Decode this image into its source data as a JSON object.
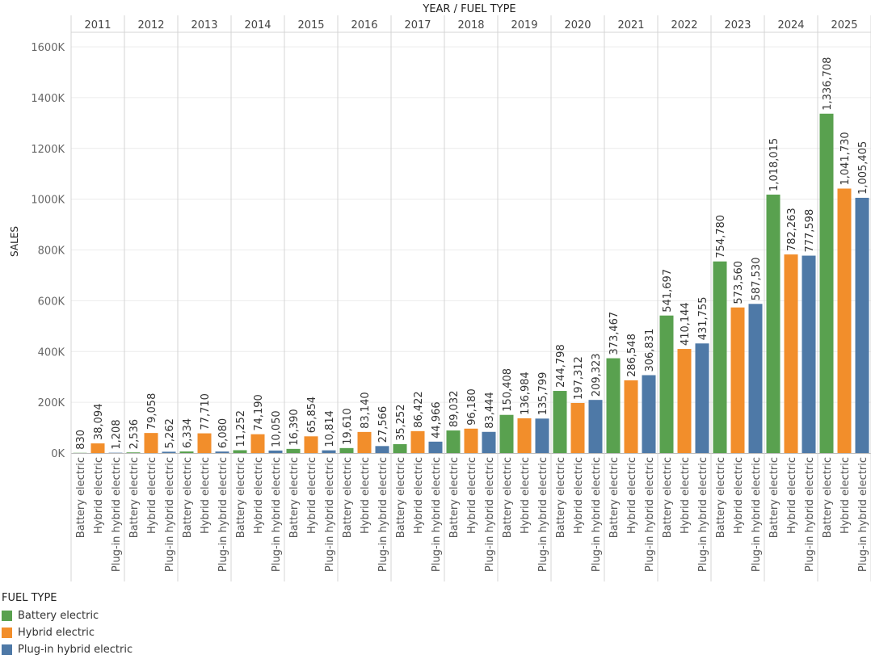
{
  "chart_data": {
    "type": "bar",
    "title": "",
    "column_header": "YEAR  /  FUEL TYPE",
    "ylabel": "SALES",
    "ylim": [
      0,
      1600000
    ],
    "yticks": [
      "0K",
      "200K",
      "400K",
      "600K",
      "800K",
      "1000K",
      "1200K",
      "1400K",
      "1600K"
    ],
    "grid": true,
    "legend_position": "bottom-left",
    "years": [
      "2011",
      "2012",
      "2013",
      "2014",
      "2015",
      "2016",
      "2017",
      "2018",
      "2019",
      "2020",
      "2021",
      "2022",
      "2023",
      "2024",
      "2025"
    ],
    "fuel_types": [
      "Battery electric",
      "Hybrid electric",
      "Plug-in hybrid electric"
    ],
    "series": [
      {
        "name": "Battery electric",
        "color": "#59a14f",
        "values": [
          830,
          2536,
          6334,
          11252,
          16390,
          19610,
          35252,
          89032,
          150408,
          244798,
          373467,
          541697,
          754780,
          1018015,
          1336708
        ],
        "labels": [
          "830",
          "2,536",
          "6,334",
          "11,252",
          "16,390",
          "19,610",
          "35,252",
          "89,032",
          "150,408",
          "244,798",
          "373,467",
          "541,697",
          "754,780",
          "1,018,015",
          "1,336,708"
        ]
      },
      {
        "name": "Hybrid electric",
        "color": "#f28e2b",
        "values": [
          38094,
          79058,
          77710,
          74190,
          65854,
          83140,
          86422,
          96180,
          136984,
          197312,
          286548,
          410144,
          573560,
          782263,
          1041730
        ],
        "labels": [
          "38,094",
          "79,058",
          "77,710",
          "74,190",
          "65,854",
          "83,140",
          "86,422",
          "96,180",
          "136,984",
          "197,312",
          "286,548",
          "410,144",
          "573,560",
          "782,263",
          "1,041,730"
        ]
      },
      {
        "name": "Plug-in hybrid electric",
        "color": "#4e79a7",
        "values": [
          1208,
          5262,
          6080,
          10050,
          10814,
          27566,
          44966,
          83444,
          135799,
          209323,
          306831,
          431755,
          587530,
          777598,
          1005405
        ],
        "labels": [
          "1,208",
          "5,262",
          "6,080",
          "10,050",
          "10,814",
          "27,566",
          "44,966",
          "83,444",
          "135,799",
          "209,323",
          "306,831",
          "431,755",
          "587,530",
          "777,598",
          "1,005,405"
        ]
      }
    ]
  },
  "legend": {
    "title": "FUEL TYPE",
    "items": [
      {
        "label": "Battery electric",
        "color": "#59a14f"
      },
      {
        "label": "Hybrid electric",
        "color": "#f28e2b"
      },
      {
        "label": "Plug-in hybrid electric",
        "color": "#4e79a7"
      }
    ]
  }
}
